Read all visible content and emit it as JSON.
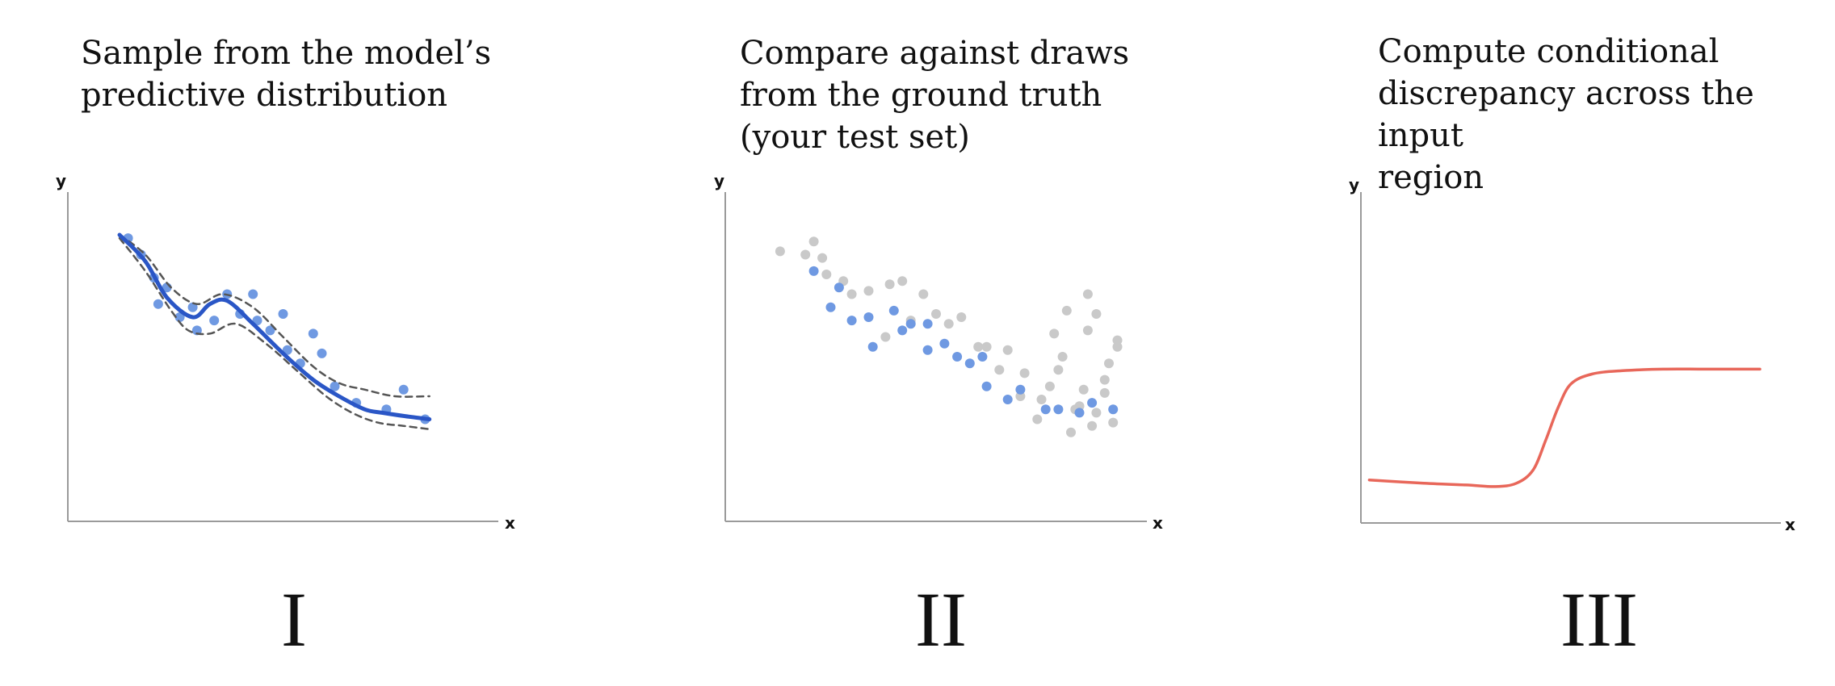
{
  "panels": [
    {
      "title": "Sample from the model’s\npredictive distribution",
      "numeral": "I",
      "xlabel": "x",
      "ylabel": "y"
    },
    {
      "title": "Compare against draws\nfrom the ground truth\n(your test set)",
      "numeral": "II",
      "xlabel": "x",
      "ylabel": "y"
    },
    {
      "title": "Compute conditional\ndiscrepancy across the input\nregion",
      "numeral": "III",
      "xlabel": "x",
      "ylabel": "y"
    }
  ],
  "colors": {
    "model_samples": "#6f99e2",
    "mean_curve": "#2a56c6",
    "interval": "#555555",
    "ground_truth": "#c9c9c9",
    "discrepancy": "#e8675a",
    "axis": "#9a9a9a"
  },
  "chart_data": [
    {
      "type": "scatter",
      "series": [
        {
          "kind": "points",
          "values": [
            [
              0.14,
              0.86
            ],
            [
              0.17,
              0.81
            ],
            [
              0.2,
              0.74
            ],
            [
              0.23,
              0.71
            ],
            [
              0.21,
              0.66
            ],
            [
              0.26,
              0.62
            ],
            [
              0.29,
              0.65
            ],
            [
              0.3,
              0.58
            ],
            [
              0.34,
              0.61
            ],
            [
              0.37,
              0.69
            ],
            [
              0.4,
              0.63
            ],
            [
              0.43,
              0.69
            ],
            [
              0.44,
              0.61
            ],
            [
              0.47,
              0.58
            ],
            [
              0.5,
              0.63
            ],
            [
              0.51,
              0.52
            ],
            [
              0.54,
              0.48
            ],
            [
              0.57,
              0.57
            ],
            [
              0.59,
              0.51
            ],
            [
              0.62,
              0.41
            ],
            [
              0.67,
              0.36
            ],
            [
              0.74,
              0.34
            ],
            [
              0.78,
              0.4
            ],
            [
              0.83,
              0.31
            ]
          ]
        },
        {
          "kind": "line",
          "values": [
            [
              0.12,
              0.87
            ],
            [
              0.18,
              0.79
            ],
            [
              0.23,
              0.68
            ],
            [
              0.29,
              0.62
            ],
            [
              0.33,
              0.66
            ],
            [
              0.37,
              0.67
            ],
            [
              0.43,
              0.6
            ],
            [
              0.5,
              0.51
            ],
            [
              0.57,
              0.43
            ],
            [
              0.63,
              0.38
            ],
            [
              0.69,
              0.34
            ],
            [
              0.73,
              0.33
            ],
            [
              0.78,
              0.32
            ],
            [
              0.84,
              0.31
            ]
          ]
        },
        {
          "kind": "line",
          "values": [
            [
              0.12,
              0.87
            ],
            [
              0.18,
              0.81
            ],
            [
              0.24,
              0.71
            ],
            [
              0.3,
              0.66
            ],
            [
              0.36,
              0.69
            ],
            [
              0.43,
              0.65
            ],
            [
              0.5,
              0.56
            ],
            [
              0.57,
              0.47
            ],
            [
              0.63,
              0.42
            ],
            [
              0.69,
              0.4
            ],
            [
              0.76,
              0.38
            ],
            [
              0.84,
              0.38
            ]
          ]
        },
        {
          "kind": "line",
          "values": [
            [
              0.12,
              0.86
            ],
            [
              0.18,
              0.76
            ],
            [
              0.24,
              0.64
            ],
            [
              0.28,
              0.58
            ],
            [
              0.33,
              0.57
            ],
            [
              0.39,
              0.6
            ],
            [
              0.46,
              0.54
            ],
            [
              0.53,
              0.46
            ],
            [
              0.6,
              0.38
            ],
            [
              0.66,
              0.33
            ],
            [
              0.72,
              0.3
            ],
            [
              0.78,
              0.29
            ],
            [
              0.84,
              0.28
            ]
          ]
        }
      ]
    },
    {
      "type": "scatter",
      "series": [
        {
          "kind": "points",
          "values": [
            [
              0.13,
              0.82
            ],
            [
              0.19,
              0.81
            ],
            [
              0.21,
              0.85
            ],
            [
              0.23,
              0.8
            ],
            [
              0.24,
              0.75
            ],
            [
              0.28,
              0.73
            ],
            [
              0.3,
              0.69
            ],
            [
              0.34,
              0.7
            ],
            [
              0.39,
              0.72
            ],
            [
              0.42,
              0.73
            ],
            [
              0.38,
              0.56
            ],
            [
              0.44,
              0.61
            ],
            [
              0.47,
              0.69
            ],
            [
              0.5,
              0.63
            ],
            [
              0.53,
              0.6
            ],
            [
              0.56,
              0.62
            ],
            [
              0.6,
              0.53
            ],
            [
              0.62,
              0.53
            ],
            [
              0.65,
              0.46
            ],
            [
              0.67,
              0.52
            ],
            [
              0.7,
              0.38
            ],
            [
              0.71,
              0.45
            ],
            [
              0.74,
              0.31
            ],
            [
              0.75,
              0.37
            ],
            [
              0.77,
              0.41
            ],
            [
              0.78,
              0.57
            ],
            [
              0.79,
              0.46
            ],
            [
              0.8,
              0.5
            ],
            [
              0.81,
              0.64
            ],
            [
              0.82,
              0.27
            ],
            [
              0.83,
              0.34
            ],
            [
              0.84,
              0.35
            ],
            [
              0.85,
              0.4
            ],
            [
              0.86,
              0.58
            ],
            [
              0.86,
              0.69
            ],
            [
              0.87,
              0.29
            ],
            [
              0.88,
              0.33
            ],
            [
              0.88,
              0.63
            ],
            [
              0.9,
              0.39
            ],
            [
              0.9,
              0.43
            ],
            [
              0.91,
              0.48
            ],
            [
              0.92,
              0.3
            ],
            [
              0.93,
              0.53
            ],
            [
              0.93,
              0.55
            ]
          ]
        },
        {
          "kind": "points",
          "values": [
            [
              0.21,
              0.76
            ],
            [
              0.27,
              0.71
            ],
            [
              0.25,
              0.65
            ],
            [
              0.3,
              0.61
            ],
            [
              0.34,
              0.62
            ],
            [
              0.35,
              0.53
            ],
            [
              0.4,
              0.64
            ],
            [
              0.42,
              0.58
            ],
            [
              0.44,
              0.6
            ],
            [
              0.48,
              0.6
            ],
            [
              0.48,
              0.52
            ],
            [
              0.52,
              0.54
            ],
            [
              0.55,
              0.5
            ],
            [
              0.58,
              0.48
            ],
            [
              0.61,
              0.5
            ],
            [
              0.62,
              0.41
            ],
            [
              0.67,
              0.37
            ],
            [
              0.7,
              0.4
            ],
            [
              0.76,
              0.34
            ],
            [
              0.79,
              0.34
            ],
            [
              0.84,
              0.33
            ],
            [
              0.92,
              0.34
            ],
            [
              0.87,
              0.36
            ]
          ]
        }
      ]
    },
    {
      "type": "line",
      "series": [
        {
          "values": [
            [
              0.02,
              0.13
            ],
            [
              0.15,
              0.12
            ],
            [
              0.25,
              0.115
            ],
            [
              0.32,
              0.11
            ],
            [
              0.37,
              0.12
            ],
            [
              0.41,
              0.16
            ],
            [
              0.44,
              0.25
            ],
            [
              0.47,
              0.35
            ],
            [
              0.5,
              0.42
            ],
            [
              0.55,
              0.45
            ],
            [
              0.62,
              0.46
            ],
            [
              0.72,
              0.465
            ],
            [
              0.82,
              0.465
            ],
            [
              0.95,
              0.465
            ]
          ]
        }
      ]
    }
  ]
}
